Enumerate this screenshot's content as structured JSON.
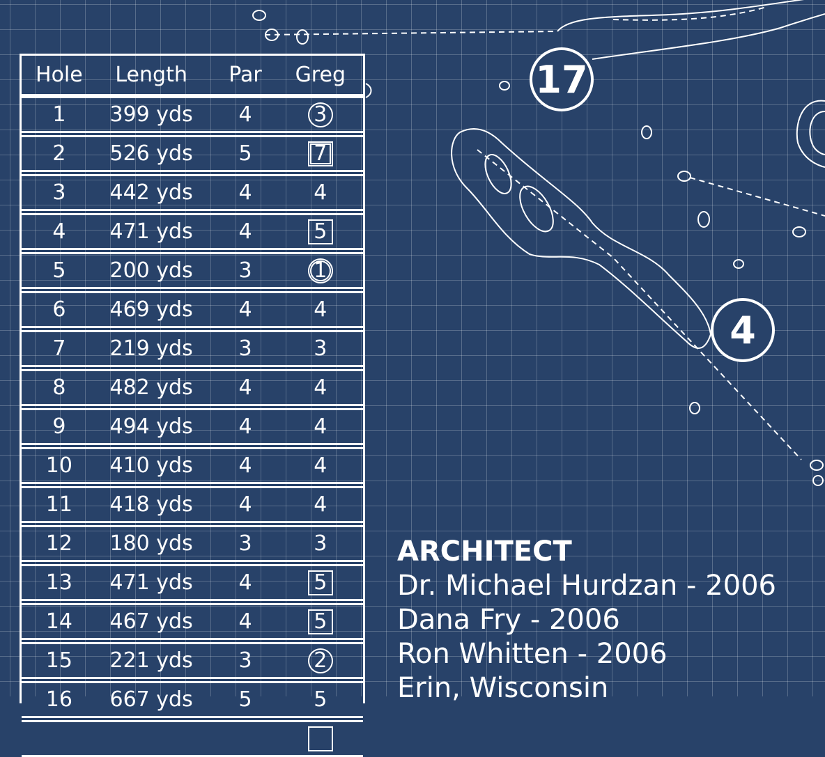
{
  "scorecard": {
    "headers": [
      "Hole",
      "Length",
      "Par",
      "Greg"
    ],
    "rows": [
      {
        "hole": "1",
        "length": "399 yds",
        "par": "4",
        "score": "3",
        "mark": "circle"
      },
      {
        "hole": "2",
        "length": "526 yds",
        "par": "5",
        "score": "7",
        "mark": "double-square"
      },
      {
        "hole": "3",
        "length": "442 yds",
        "par": "4",
        "score": "4",
        "mark": "none"
      },
      {
        "hole": "4",
        "length": "471 yds",
        "par": "4",
        "score": "5",
        "mark": "square"
      },
      {
        "hole": "5",
        "length": "200 yds",
        "par": "3",
        "score": "1",
        "mark": "double-circle"
      },
      {
        "hole": "6",
        "length": "469 yds",
        "par": "4",
        "score": "4",
        "mark": "none"
      },
      {
        "hole": "7",
        "length": "219 yds",
        "par": "3",
        "score": "3",
        "mark": "none"
      },
      {
        "hole": "8",
        "length": "482 yds",
        "par": "4",
        "score": "4",
        "mark": "none"
      },
      {
        "hole": "9",
        "length": "494 yds",
        "par": "4",
        "score": "4",
        "mark": "none"
      },
      {
        "hole": "10",
        "length": "410 yds",
        "par": "4",
        "score": "4",
        "mark": "none"
      },
      {
        "hole": "11",
        "length": "418 yds",
        "par": "4",
        "score": "4",
        "mark": "none"
      },
      {
        "hole": "12",
        "length": "180 yds",
        "par": "3",
        "score": "3",
        "mark": "none"
      },
      {
        "hole": "13",
        "length": "471 yds",
        "par": "4",
        "score": "5",
        "mark": "square"
      },
      {
        "hole": "14",
        "length": "467 yds",
        "par": "4",
        "score": "5",
        "mark": "square"
      },
      {
        "hole": "15",
        "length": "221 yds",
        "par": "3",
        "score": "2",
        "mark": "circle"
      },
      {
        "hole": "16",
        "length": "667 yds",
        "par": "5",
        "score": "5",
        "mark": "none"
      }
    ]
  },
  "map": {
    "hole_badges": [
      "17",
      "4"
    ]
  },
  "info": {
    "title": "ARCHITECT",
    "lines": [
      "Dr. Michael Hurdzan  -  2006",
      "Dana Fry  -  2006",
      "Ron Whitten  -  2006",
      "Erin, Wisconsin"
    ]
  },
  "colors": {
    "background": "#284269",
    "lines": "#ffffff"
  }
}
